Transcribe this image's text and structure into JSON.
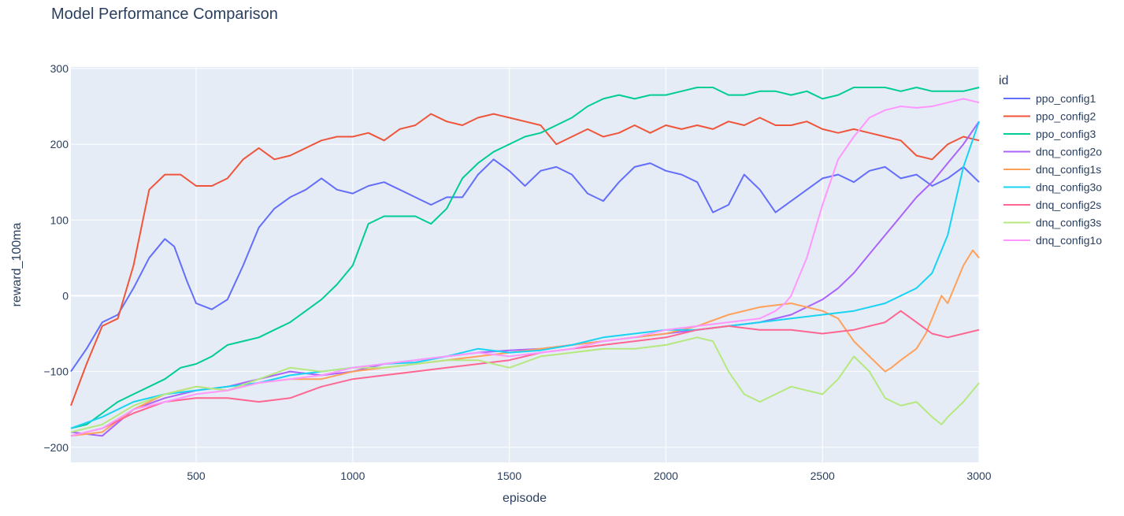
{
  "chart_data": {
    "type": "line",
    "title": "Model Performance Comparison",
    "xlabel": "episode",
    "ylabel": "reward_100ma",
    "legend_title": "id",
    "legend_position": "right",
    "grid": true,
    "xlim": [
      100,
      3000
    ],
    "ylim": [
      -220,
      302
    ],
    "xticks": [
      500,
      1000,
      1500,
      2000,
      2500,
      3000
    ],
    "yticks": [
      -200,
      -100,
      0,
      100,
      200,
      300
    ],
    "series": [
      {
        "name": "ppo_config1",
        "color": "#636efa",
        "x": [
          100,
          150,
          200,
          250,
          300,
          350,
          400,
          430,
          470,
          500,
          550,
          600,
          650,
          700,
          750,
          800,
          850,
          900,
          950,
          1000,
          1050,
          1100,
          1150,
          1200,
          1250,
          1300,
          1350,
          1400,
          1450,
          1500,
          1550,
          1600,
          1650,
          1700,
          1750,
          1800,
          1850,
          1900,
          1950,
          2000,
          2050,
          2100,
          2150,
          2200,
          2250,
          2300,
          2350,
          2400,
          2450,
          2500,
          2550,
          2600,
          2650,
          2700,
          2750,
          2800,
          2850,
          2900,
          2950,
          3000
        ],
        "y": [
          -100,
          -70,
          -35,
          -25,
          10,
          50,
          75,
          65,
          20,
          -10,
          -18,
          -5,
          40,
          90,
          115,
          130,
          140,
          155,
          140,
          135,
          145,
          150,
          140,
          130,
          120,
          130,
          130,
          160,
          180,
          165,
          145,
          165,
          170,
          160,
          135,
          125,
          150,
          170,
          175,
          165,
          160,
          150,
          110,
          120,
          160,
          140,
          110,
          125,
          140,
          155,
          160,
          150,
          165,
          170,
          155,
          160,
          145,
          155,
          170,
          150
        ]
      },
      {
        "name": "ppo_config2",
        "color": "#ef553b",
        "x": [
          100,
          150,
          200,
          250,
          300,
          350,
          400,
          450,
          500,
          550,
          600,
          650,
          700,
          750,
          800,
          850,
          900,
          950,
          1000,
          1050,
          1100,
          1150,
          1200,
          1250,
          1300,
          1350,
          1400,
          1450,
          1500,
          1550,
          1600,
          1650,
          1700,
          1750,
          1800,
          1850,
          1900,
          1950,
          2000,
          2050,
          2100,
          2150,
          2200,
          2250,
          2300,
          2350,
          2400,
          2450,
          2500,
          2550,
          2600,
          2650,
          2700,
          2750,
          2800,
          2850,
          2900,
          2950,
          3000
        ],
        "y": [
          -145,
          -90,
          -40,
          -30,
          40,
          140,
          160,
          160,
          145,
          145,
          155,
          180,
          195,
          180,
          185,
          195,
          205,
          210,
          210,
          215,
          205,
          220,
          225,
          240,
          230,
          225,
          235,
          240,
          235,
          230,
          225,
          200,
          210,
          220,
          210,
          215,
          225,
          215,
          225,
          220,
          225,
          220,
          230,
          225,
          235,
          225,
          225,
          230,
          220,
          215,
          220,
          215,
          210,
          205,
          185,
          180,
          200,
          210,
          205
        ]
      },
      {
        "name": "ppo_config3",
        "color": "#00cc96",
        "x": [
          100,
          150,
          200,
          250,
          300,
          350,
          400,
          450,
          500,
          550,
          600,
          650,
          700,
          750,
          800,
          850,
          900,
          950,
          1000,
          1050,
          1100,
          1150,
          1200,
          1250,
          1300,
          1350,
          1400,
          1450,
          1500,
          1550,
          1600,
          1650,
          1700,
          1750,
          1800,
          1850,
          1900,
          1950,
          2000,
          2050,
          2100,
          2150,
          2200,
          2250,
          2300,
          2350,
          2400,
          2450,
          2500,
          2550,
          2600,
          2650,
          2700,
          2750,
          2800,
          2850,
          2900,
          2950,
          3000
        ],
        "y": [
          -175,
          -170,
          -155,
          -140,
          -130,
          -120,
          -110,
          -95,
          -90,
          -80,
          -65,
          -60,
          -55,
          -45,
          -35,
          -20,
          -5,
          15,
          40,
          95,
          105,
          105,
          105,
          95,
          115,
          155,
          175,
          190,
          200,
          210,
          215,
          225,
          235,
          250,
          260,
          265,
          260,
          265,
          265,
          270,
          275,
          275,
          265,
          265,
          270,
          270,
          265,
          270,
          260,
          265,
          275,
          275,
          275,
          270,
          275,
          270,
          270,
          270,
          275
        ]
      },
      {
        "name": "dnq_config2o",
        "color": "#ab63fa",
        "x": [
          100,
          200,
          300,
          400,
          500,
          600,
          700,
          800,
          900,
          1000,
          1100,
          1200,
          1300,
          1400,
          1500,
          1600,
          1700,
          1800,
          1900,
          2000,
          2100,
          2200,
          2300,
          2400,
          2450,
          2500,
          2550,
          2600,
          2650,
          2700,
          2750,
          2800,
          2850,
          2900,
          2950,
          3000
        ],
        "y": [
          -180,
          -185,
          -150,
          -135,
          -125,
          -120,
          -110,
          -100,
          -105,
          -100,
          -90,
          -85,
          -80,
          -75,
          -72,
          -70,
          -65,
          -60,
          -55,
          -50,
          -45,
          -40,
          -35,
          -25,
          -15,
          -5,
          10,
          30,
          55,
          80,
          105,
          130,
          150,
          175,
          200,
          230
        ]
      },
      {
        "name": "dnq_config1s",
        "color": "#ffa15a",
        "x": [
          100,
          200,
          300,
          400,
          500,
          600,
          700,
          800,
          900,
          1000,
          1100,
          1200,
          1300,
          1400,
          1500,
          1600,
          1700,
          1800,
          1900,
          2000,
          2100,
          2200,
          2300,
          2400,
          2450,
          2500,
          2550,
          2600,
          2650,
          2700,
          2720,
          2750,
          2800,
          2830,
          2850,
          2880,
          2900,
          2950,
          2980,
          3000
        ],
        "y": [
          -185,
          -180,
          -150,
          -130,
          -120,
          -125,
          -115,
          -110,
          -110,
          -100,
          -95,
          -90,
          -85,
          -80,
          -75,
          -70,
          -65,
          -60,
          -55,
          -50,
          -40,
          -25,
          -15,
          -10,
          -15,
          -20,
          -30,
          -60,
          -80,
          -100,
          -95,
          -85,
          -70,
          -50,
          -30,
          0,
          -10,
          40,
          60,
          50
        ]
      },
      {
        "name": "dnq_config3o",
        "color": "#19d3f3",
        "x": [
          100,
          200,
          300,
          400,
          500,
          600,
          700,
          800,
          900,
          1000,
          1100,
          1200,
          1300,
          1400,
          1500,
          1600,
          1700,
          1800,
          1900,
          2000,
          2100,
          2200,
          2300,
          2400,
          2500,
          2600,
          2700,
          2750,
          2800,
          2850,
          2900,
          2950,
          3000
        ],
        "y": [
          -175,
          -160,
          -140,
          -130,
          -125,
          -120,
          -115,
          -105,
          -100,
          -95,
          -90,
          -88,
          -80,
          -70,
          -75,
          -72,
          -65,
          -55,
          -50,
          -45,
          -45,
          -40,
          -35,
          -30,
          -25,
          -20,
          -10,
          0,
          10,
          30,
          80,
          170,
          230
        ]
      },
      {
        "name": "dnq_config2s",
        "color": "#ff6692",
        "x": [
          100,
          200,
          300,
          400,
          500,
          600,
          700,
          800,
          900,
          1000,
          1100,
          1200,
          1300,
          1400,
          1500,
          1600,
          1700,
          1800,
          1900,
          2000,
          2100,
          2200,
          2300,
          2400,
          2500,
          2600,
          2700,
          2750,
          2800,
          2850,
          2900,
          2950,
          3000
        ],
        "y": [
          -185,
          -175,
          -155,
          -140,
          -135,
          -135,
          -140,
          -135,
          -120,
          -110,
          -105,
          -100,
          -95,
          -90,
          -85,
          -75,
          -70,
          -65,
          -60,
          -55,
          -45,
          -40,
          -45,
          -45,
          -50,
          -45,
          -35,
          -20,
          -35,
          -50,
          -55,
          -50,
          -45
        ]
      },
      {
        "name": "dnq_config3s",
        "color": "#b6e880",
        "x": [
          100,
          200,
          300,
          400,
          500,
          600,
          700,
          800,
          900,
          1000,
          1100,
          1200,
          1300,
          1400,
          1500,
          1600,
          1700,
          1800,
          1900,
          2000,
          2100,
          2150,
          2200,
          2250,
          2300,
          2350,
          2400,
          2450,
          2500,
          2550,
          2600,
          2650,
          2700,
          2750,
          2800,
          2850,
          2880,
          2900,
          2950,
          3000
        ],
        "y": [
          -180,
          -170,
          -145,
          -130,
          -120,
          -125,
          -110,
          -95,
          -100,
          -95,
          -95,
          -90,
          -85,
          -85,
          -95,
          -80,
          -75,
          -70,
          -70,
          -65,
          -55,
          -60,
          -100,
          -130,
          -140,
          -130,
          -120,
          -125,
          -130,
          -110,
          -80,
          -100,
          -135,
          -145,
          -140,
          -160,
          -170,
          -160,
          -140,
          -115
        ]
      },
      {
        "name": "dnq_config1o",
        "color": "#ff97ff",
        "x": [
          100,
          200,
          300,
          400,
          500,
          600,
          700,
          800,
          900,
          1000,
          1100,
          1200,
          1300,
          1400,
          1500,
          1600,
          1700,
          1800,
          1900,
          2000,
          2100,
          2200,
          2300,
          2350,
          2380,
          2400,
          2450,
          2500,
          2550,
          2600,
          2650,
          2700,
          2750,
          2800,
          2850,
          2900,
          2950,
          3000
        ],
        "y": [
          -185,
          -175,
          -150,
          -140,
          -130,
          -125,
          -115,
          -110,
          -105,
          -95,
          -90,
          -85,
          -80,
          -75,
          -80,
          -75,
          -70,
          -60,
          -55,
          -45,
          -40,
          -35,
          -30,
          -20,
          -10,
          0,
          50,
          120,
          180,
          210,
          235,
          245,
          250,
          248,
          250,
          255,
          260,
          255
        ]
      }
    ]
  }
}
